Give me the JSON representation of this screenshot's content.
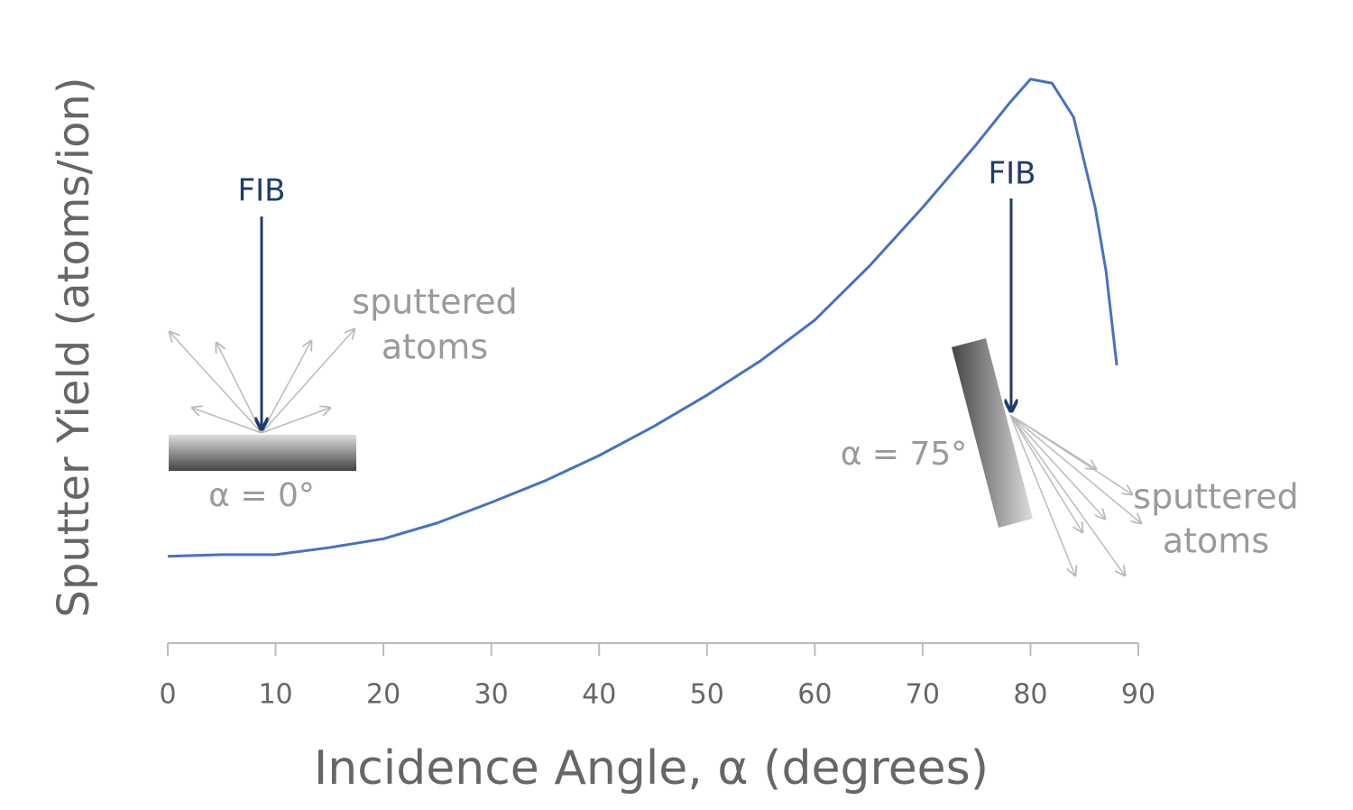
{
  "chart_data": {
    "type": "line",
    "x_label": "Incidence Angle, α (degrees)",
    "y_label": "Sputter Yield (atoms/ion)",
    "x": [
      0,
      5,
      10,
      15,
      20,
      25,
      30,
      35,
      40,
      45,
      50,
      55,
      60,
      65,
      70,
      75,
      78,
      80,
      82,
      84,
      86,
      87,
      88
    ],
    "series": [
      {
        "color": "#4472c4",
        "values": [
          14.8,
          15.1,
          15.1,
          16.3,
          17.8,
          20.5,
          24,
          27.7,
          32,
          36.9,
          42.3,
          48.2,
          55.1,
          64.2,
          74.3,
          85.1,
          92,
          96.2,
          95.5,
          89.7,
          74.3,
          63.5,
          47.4
        ]
      }
    ],
    "xlim": [
      0,
      90
    ],
    "xticks": [
      0,
      10,
      20,
      30,
      40,
      50,
      60,
      70,
      80,
      90
    ],
    "ylim": [
      0,
      100
    ],
    "annotations": [
      "FIB",
      "sputtered",
      "atoms",
      "α = 0°",
      "FIB",
      "α = 75°",
      "sputtered",
      "atoms"
    ]
  }
}
